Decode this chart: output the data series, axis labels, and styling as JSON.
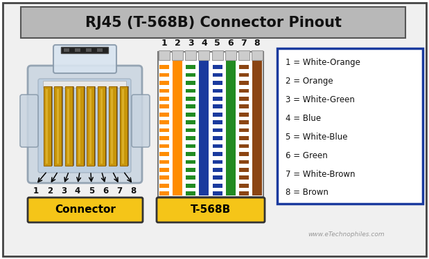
{
  "title": "RJ45 (T-568B) Connector Pinout",
  "title_bg": "#b8b8b8",
  "bg_color": "#ffffff",
  "outer_bg": "#e8e8e8",
  "border_color": "#444444",
  "pin_labels": [
    "1",
    "2",
    "3",
    "4",
    "5",
    "6",
    "7",
    "8"
  ],
  "legend_entries": [
    "1 = White-Orange",
    "2 = Orange",
    "3 = White-Green",
    "4 = Blue",
    "5 = White-Blue",
    "6 = Green",
    "7 = White-Brown",
    "8 = Brown"
  ],
  "wire_colors": [
    [
      "#ffffff",
      "#ff8c00"
    ],
    [
      "#ff8c00",
      "#ff8c00"
    ],
    [
      "#ffffff",
      "#228B22"
    ],
    [
      "#1a3a9e",
      "#1a3a9e"
    ],
    [
      "#ffffff",
      "#1a3a9e"
    ],
    [
      "#228B22",
      "#228B22"
    ],
    [
      "#ffffff",
      "#8B4513"
    ],
    [
      "#8B4513",
      "#8B4513"
    ]
  ],
  "connector_label": "Connector",
  "t568b_label": "T-568B",
  "label_bg": "#f5c518",
  "label_fg": "#000000",
  "watermark": "www.eTechnophiles.com",
  "legend_border": "#1a3a9e",
  "connector_body_color": "#c8d4e0",
  "connector_body_edge": "#8899aa",
  "connector_inner_color": "#a8b8cc",
  "gold_color": "#c8960a",
  "gold_edge": "#996600",
  "gold_shine": "#e8c040"
}
